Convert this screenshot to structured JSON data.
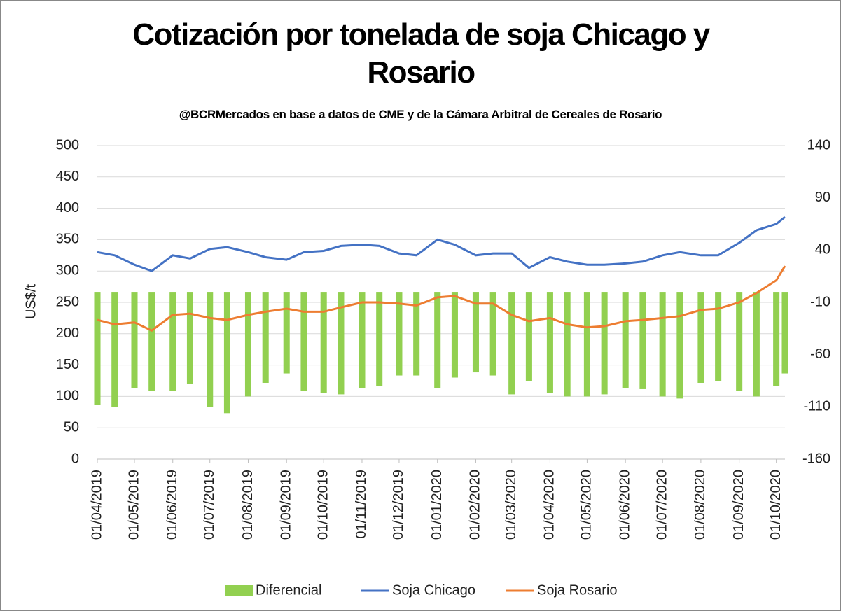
{
  "chart_data": {
    "type": "line",
    "title": "Cotización por tonelada de soja Chicago y Rosario",
    "subtitle": "@BCRMercados  en base a datos de CME y de la Cámara Arbitral de Cereales de Rosario",
    "y_label": "US$/t",
    "x": [
      "01/04/2019",
      "15/04/2019",
      "01/05/2019",
      "15/05/2019",
      "01/06/2019",
      "15/06/2019",
      "01/07/2019",
      "15/07/2019",
      "01/08/2019",
      "15/08/2019",
      "01/09/2019",
      "15/09/2019",
      "01/10/2019",
      "15/10/2019",
      "01/11/2019",
      "15/11/2019",
      "01/12/2019",
      "15/12/2019",
      "01/01/2020",
      "15/01/2020",
      "01/02/2020",
      "15/02/2020",
      "01/03/2020",
      "15/03/2020",
      "01/04/2020",
      "15/04/2020",
      "01/05/2020",
      "15/05/2020",
      "01/06/2020",
      "15/06/2020",
      "01/07/2020",
      "15/07/2020",
      "01/08/2020",
      "15/08/2020",
      "01/09/2020",
      "15/09/2020",
      "01/10/2020",
      "08/10/2020"
    ],
    "series": [
      {
        "name": "Diferencial",
        "type": "bar",
        "axis": "y2",
        "color": "#92d050",
        "values": [
          -108,
          -110,
          -92,
          -95,
          -95,
          -88,
          -110,
          -116,
          -100,
          -87,
          -78,
          -95,
          -97,
          -98,
          -92,
          -90,
          -80,
          -80,
          -92,
          -82,
          -77,
          -80,
          -98,
          -85,
          -97,
          -100,
          -100,
          -98,
          -92,
          -93,
          -100,
          -102,
          -87,
          -85,
          -95,
          -100,
          -90,
          -78
        ]
      },
      {
        "name": "Soja Chicago",
        "type": "line",
        "color": "#4472c4",
        "values": [
          330,
          325,
          310,
          300,
          325,
          320,
          335,
          338,
          330,
          322,
          318,
          330,
          332,
          340,
          342,
          340,
          328,
          325,
          350,
          342,
          325,
          328,
          328,
          305,
          322,
          315,
          310,
          310,
          312,
          315,
          325,
          330,
          325,
          325,
          345,
          365,
          375,
          386
        ]
      },
      {
        "name": "Soja Rosario",
        "type": "line",
        "color": "#ed7d31",
        "values": [
          222,
          215,
          218,
          205,
          230,
          232,
          225,
          222,
          230,
          235,
          240,
          235,
          235,
          242,
          250,
          250,
          248,
          245,
          258,
          260,
          248,
          248,
          230,
          220,
          225,
          215,
          210,
          212,
          220,
          222,
          225,
          228,
          238,
          240,
          250,
          265,
          285,
          308
        ]
      }
    ],
    "xlim": [
      "01/04/2019",
      "08/10/2020"
    ],
    "xticks": [
      "01/04/2019",
      "01/05/2019",
      "01/06/2019",
      "01/07/2019",
      "01/08/2019",
      "01/09/2019",
      "01/10/2019",
      "01/11/2019",
      "01/12/2019",
      "01/01/2020",
      "01/02/2020",
      "01/03/2020",
      "01/04/2020",
      "01/05/2020",
      "01/06/2020",
      "01/07/2020",
      "01/08/2020",
      "01/09/2020",
      "01/10/2020"
    ],
    "ylim": [
      0,
      500
    ],
    "yticks": [
      0,
      50,
      100,
      150,
      200,
      250,
      300,
      350,
      400,
      450,
      500
    ],
    "y2lim": [
      -160,
      140
    ],
    "y2ticks": [
      -160,
      -110,
      -60,
      -10,
      40,
      90,
      140
    ],
    "grid": true,
    "legend": "bottom"
  }
}
